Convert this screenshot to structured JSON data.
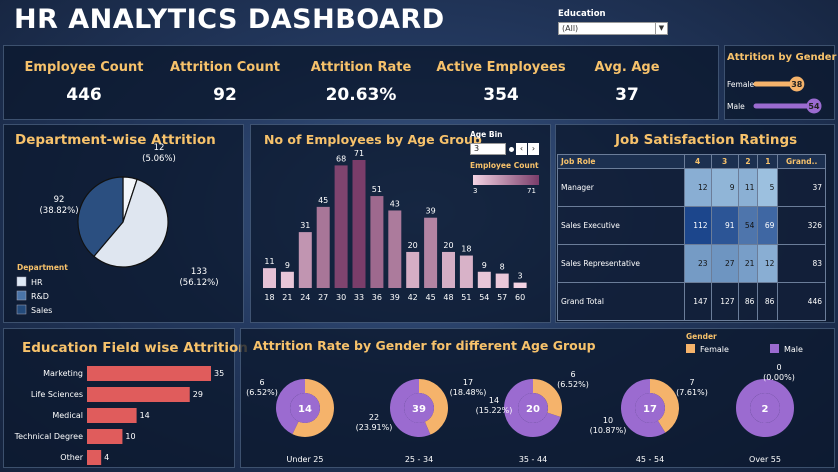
{
  "header": {
    "title": "HR ANALYTICS DASHBOARD",
    "education_label": "Education",
    "education_value": "(All)"
  },
  "kpis": [
    {
      "label": "Employee Count",
      "value": "446"
    },
    {
      "label": "Attrition Count",
      "value": "92"
    },
    {
      "label": "Attrition Rate",
      "value": "20.63%"
    },
    {
      "label": "Active Employees",
      "value": "354"
    },
    {
      "label": "Avg. Age",
      "value": "37"
    }
  ],
  "gender_attrition": {
    "title": "Attrition by Gender",
    "items": [
      {
        "label": "Female",
        "value": 38,
        "color": "#f5b36b"
      },
      {
        "label": "Male",
        "value": 54,
        "color": "#9b6bd0"
      }
    ]
  },
  "dept": {
    "title": "Department-wise Attrition",
    "legend_title": "Department",
    "legend": [
      {
        "label": "HR",
        "color": "#dde8f5"
      },
      {
        "label": "R&D",
        "color": "#4a74a8"
      },
      {
        "label": "Sales",
        "color": "#234a7a"
      }
    ],
    "labels": [
      {
        "value": "12",
        "pct": "(5.06%)"
      },
      {
        "value": "92",
        "pct": "(38.82%)"
      },
      {
        "value": "133",
        "pct": "(56.12%)"
      }
    ]
  },
  "age": {
    "title": "No of Employees by Age Group",
    "bin_label": "Age Bin",
    "bin_value": "3",
    "legend_title": "Employee Count",
    "legend_min": "3",
    "legend_max": "71"
  },
  "edu": {
    "title": "Education Field wise Attrition"
  },
  "job": {
    "title": "Job Satisfaction Ratings",
    "headers": [
      "Job Role",
      "4",
      "3",
      "2",
      "1",
      "Grand.."
    ],
    "rows": [
      {
        "role": "Manager",
        "vals": [
          "12",
          "9",
          "11",
          "5"
        ],
        "total": "37"
      },
      {
        "role": "Sales Executive",
        "vals": [
          "112",
          "91",
          "54",
          "69"
        ],
        "total": "326"
      },
      {
        "role": "Sales Representative",
        "vals": [
          "23",
          "27",
          "21",
          "12"
        ],
        "total": "83"
      },
      {
        "role": "Grand Total",
        "vals": [
          "147",
          "127",
          "86",
          "86"
        ],
        "total": "446"
      }
    ]
  },
  "donut": {
    "title": "Attrition Rate by Gender for different Age Group",
    "legend_title": "Gender",
    "legend": [
      {
        "label": "Female",
        "color": "#f5b36b"
      },
      {
        "label": "Male",
        "color": "#9b6bd0"
      }
    ]
  },
  "chart_data": [
    {
      "type": "pie",
      "title": "Department-wise Attrition",
      "categories": [
        "HR",
        "R&D",
        "Sales"
      ],
      "values": [
        12,
        92,
        133
      ],
      "labels": [
        "12 (5.06%)",
        "92 (38.82%)",
        "133 (56.12%)"
      ]
    },
    {
      "type": "bar",
      "title": "No of Employees by Age Group",
      "categories": [
        "18",
        "21",
        "24",
        "27",
        "30",
        "33",
        "36",
        "39",
        "42",
        "45",
        "48",
        "51",
        "54",
        "57",
        "60"
      ],
      "values": [
        11,
        9,
        31,
        45,
        68,
        71,
        51,
        43,
        20,
        39,
        20,
        18,
        9,
        8,
        3
      ],
      "color_range": [
        3,
        71
      ]
    },
    {
      "type": "bar",
      "orientation": "horizontal",
      "title": "Education Field wise Attrition",
      "categories": [
        "Marketing",
        "Life Sciences",
        "Medical",
        "Technical Degree",
        "Other"
      ],
      "values": [
        35,
        29,
        14,
        10,
        4
      ]
    },
    {
      "type": "pie",
      "subtype": "donut",
      "title": "Attrition Rate by Gender for different Age Group",
      "groups": [
        {
          "name": "Under 25",
          "total": "14",
          "female": {
            "value": 8,
            "label": ""
          },
          "male": {
            "value": 6,
            "label": "6",
            "pct": "(6.52%)"
          }
        },
        {
          "name": "25 - 34",
          "total": "39",
          "female": {
            "value": 17,
            "label": "17",
            "pct": "(18.48%)"
          },
          "male": {
            "value": 22,
            "label": "22",
            "pct": "(23.91%)"
          }
        },
        {
          "name": "35 - 44",
          "total": "20",
          "female": {
            "value": 6,
            "label": "6",
            "pct": "(6.52%)"
          },
          "male": {
            "value": 14,
            "label": "14",
            "pct": "(15.22%)"
          }
        },
        {
          "name": "45 - 54",
          "total": "17",
          "female": {
            "value": 7,
            "label": "7",
            "pct": "(7.61%)"
          },
          "male": {
            "value": 10,
            "label": "10",
            "pct": "(10.87%)"
          }
        },
        {
          "name": "Over 55",
          "total": "2",
          "female": {
            "value": 0,
            "label": "0",
            "pct": "(0.00%)"
          },
          "male": {
            "value": 2,
            "label": "",
            "pct": ""
          }
        }
      ]
    }
  ]
}
